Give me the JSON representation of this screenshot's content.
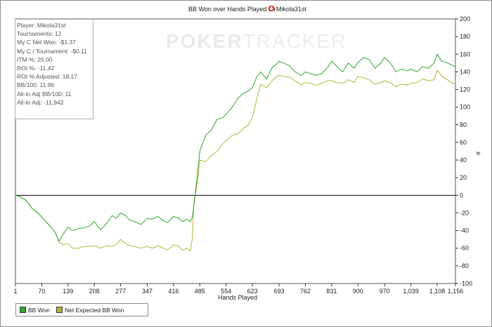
{
  "title_prefix": "BB Won over Hands Played for",
  "player_name": "Mikola31st",
  "watermark": {
    "bold": "POKER",
    "light": "TRACKER"
  },
  "stats": [
    "Player: Mikola31st",
    "Tournaments: 12",
    "My C Net Won: -$1.37",
    "My C / Tournament: -$0.11",
    "ITM %: 25.00",
    "ROI %: -11.42",
    "ROI % Adjusted: 18.17",
    "BB/100: 11.96",
    "All-In Adj BB/100: 11",
    "All-In Adj: -11,942"
  ],
  "colors": {
    "bb_won": "#2ea82e",
    "net_expected": "#b3b33a",
    "zero_line": "#000000"
  },
  "chart_data": {
    "type": "line",
    "title": "BB Won over Hands Played for Mikola31st",
    "xlabel": "Hands Played",
    "ylabel": "#",
    "xlim": [
      1,
      1156
    ],
    "ylim": [
      -100,
      200
    ],
    "x_ticks": [
      1,
      70,
      139,
      208,
      277,
      347,
      416,
      485,
      554,
      623,
      693,
      762,
      831,
      900,
      970,
      1039,
      1108,
      1156
    ],
    "x_tick_labels": [
      "1",
      "70",
      "139",
      "208",
      "277",
      "347",
      "416",
      "485",
      "554",
      "623",
      "693",
      "762",
      "831",
      "900",
      "970",
      "1,039",
      "1,108",
      "1,156"
    ],
    "y_ticks": [
      -100,
      -80,
      -60,
      -40,
      -20,
      0,
      20,
      40,
      60,
      80,
      100,
      120,
      140,
      160,
      180,
      200
    ],
    "y_axis_position": "right",
    "legend_position": "bottom-left",
    "series": [
      {
        "name": "BB Won",
        "x": [
          1,
          15,
          30,
          45,
          60,
          75,
          90,
          105,
          115,
          125,
          139,
          150,
          165,
          180,
          195,
          208,
          225,
          240,
          255,
          265,
          277,
          290,
          300,
          315,
          330,
          347,
          360,
          375,
          390,
          400,
          416,
          430,
          440,
          450,
          460,
          465,
          470,
          475,
          480,
          485,
          500,
          515,
          530,
          545,
          554,
          570,
          585,
          600,
          612,
          623,
          635,
          645,
          660,
          675,
          685,
          693,
          705,
          720,
          735,
          750,
          762,
          775,
          790,
          805,
          820,
          831,
          845,
          860,
          875,
          890,
          900,
          915,
          930,
          945,
          960,
          970,
          985,
          1000,
          1015,
          1030,
          1039,
          1055,
          1070,
          1085,
          1100,
          1108,
          1120,
          1135,
          1145,
          1156
        ],
        "y": [
          0,
          -2,
          -6,
          -15,
          -20,
          -27,
          -34,
          -42,
          -52,
          -45,
          -36,
          -40,
          -38,
          -37,
          -35,
          -30,
          -39,
          -32,
          -23,
          -26,
          -20,
          -23,
          -28,
          -30,
          -33,
          -26,
          -27,
          -24,
          -29,
          -31,
          -24,
          -26,
          -30,
          -27,
          -30,
          -25,
          -10,
          10,
          30,
          50,
          68,
          74,
          86,
          88,
          92,
          100,
          110,
          116,
          118,
          122,
          135,
          140,
          132,
          145,
          148,
          152,
          150,
          147,
          140,
          136,
          140,
          138,
          136,
          138,
          145,
          152,
          146,
          140,
          150,
          144,
          151,
          156,
          154,
          144,
          150,
          156,
          150,
          140,
          143,
          141,
          143,
          140,
          146,
          144,
          150,
          160,
          152,
          150,
          148,
          146
        ]
      },
      {
        "name": "Net Expected BB Won",
        "x": [
          1,
          15,
          30,
          45,
          60,
          75,
          90,
          105,
          115,
          125,
          139,
          150,
          165,
          180,
          195,
          208,
          225,
          240,
          255,
          265,
          277,
          290,
          300,
          315,
          330,
          347,
          360,
          375,
          390,
          400,
          416,
          430,
          440,
          450,
          460,
          465,
          470,
          475,
          480,
          485,
          500,
          515,
          530,
          545,
          554,
          570,
          585,
          600,
          612,
          623,
          635,
          645,
          660,
          675,
          685,
          693,
          705,
          720,
          735,
          750,
          762,
          775,
          790,
          805,
          820,
          831,
          845,
          860,
          875,
          890,
          900,
          915,
          930,
          945,
          960,
          970,
          985,
          1000,
          1015,
          1030,
          1039,
          1055,
          1070,
          1085,
          1100,
          1108,
          1120,
          1135,
          1145,
          1156
        ],
        "y": [
          0,
          -2,
          -6,
          -15,
          -20,
          -27,
          -34,
          -42,
          -53,
          -56,
          -55,
          -60,
          -60,
          -58,
          -58,
          -57,
          -60,
          -57,
          -58,
          -56,
          -50,
          -55,
          -57,
          -58,
          -60,
          -58,
          -60,
          -57,
          -60,
          -62,
          -56,
          -58,
          -62,
          -60,
          -63,
          -50,
          -5,
          5,
          20,
          40,
          38,
          45,
          50,
          58,
          62,
          68,
          70,
          76,
          80,
          88,
          110,
          126,
          122,
          130,
          134,
          136,
          135,
          134,
          130,
          125,
          128,
          127,
          125,
          127,
          130,
          130,
          128,
          127,
          131,
          128,
          135,
          133,
          131,
          126,
          128,
          130,
          128,
          123,
          126,
          125,
          127,
          128,
          132,
          130,
          131,
          142,
          135,
          131,
          128,
          126
        ]
      }
    ]
  }
}
